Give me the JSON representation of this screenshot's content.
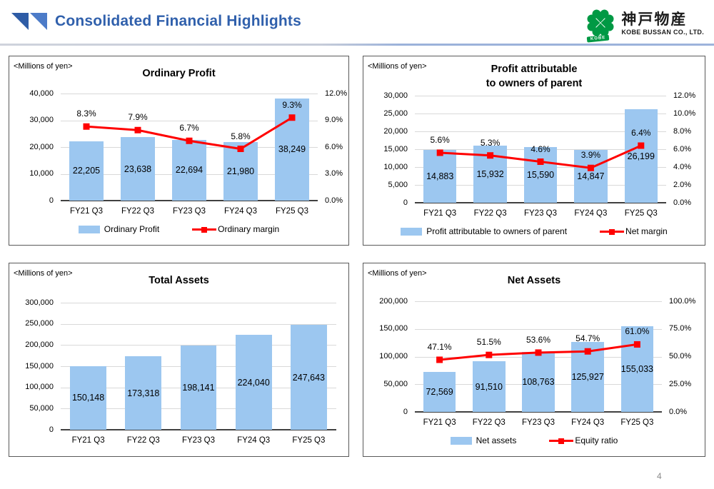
{
  "header": {
    "title": "Consolidated Financial Highlights",
    "logo": {
      "kanji": "神戸物産",
      "company": "KOBE BUSSAN CO., LTD.",
      "badge": "KOBE",
      "green": "#009944"
    }
  },
  "page_number": "4",
  "chart_data": [
    {
      "id": "ordinary-profit",
      "type": "bar+line",
      "unit_label": "<Millions of yen>",
      "title_lines": [
        "Ordinary Profit"
      ],
      "categories": [
        "FY21 Q3",
        "FY22 Q3",
        "FY23 Q3",
        "FY24 Q3",
        "FY25 Q3"
      ],
      "bar": {
        "name": "Ordinary Profit",
        "values": [
          22205,
          23638,
          22694,
          21980,
          38249
        ],
        "labels": [
          "22,205",
          "23,638",
          "22,694",
          "21,980",
          "38,249"
        ]
      },
      "line": {
        "name": "Ordinary margin",
        "values": [
          8.3,
          7.9,
          6.7,
          5.8,
          9.3
        ],
        "labels": [
          "8.3%",
          "7.9%",
          "6.7%",
          "5.8%",
          "9.3%"
        ]
      },
      "left_axis": {
        "min": 0,
        "max": 40000,
        "tick_labels": [
          "40,000",
          "30,000",
          "20,000",
          "10,000",
          "0"
        ]
      },
      "right_axis": {
        "min": 0,
        "max": 12,
        "tick_labels": [
          "12.0%",
          "9.0%",
          "6.0%",
          "3.0%",
          "0.0%"
        ]
      },
      "legend": [
        {
          "type": "bar",
          "label": "Ordinary Profit"
        },
        {
          "type": "line",
          "label": "Ordinary margin"
        }
      ],
      "colors": {
        "bar": "#9CC7F0",
        "line": "#FF0000"
      },
      "grid": true,
      "legend_position": "bottom"
    },
    {
      "id": "profit-attributable",
      "type": "bar+line",
      "unit_label": "<Millions of yen>",
      "title_lines": [
        "Profit attributable",
        "to owners of parent"
      ],
      "categories": [
        "FY21 Q3",
        "FY22 Q3",
        "FY23 Q3",
        "FY24 Q3",
        "FY25 Q3"
      ],
      "bar": {
        "name": "Profit attributable to owners of parent",
        "values": [
          14883,
          15932,
          15590,
          14847,
          26199
        ],
        "labels": [
          "14,883",
          "15,932",
          "15,590",
          "14,847",
          "26,199"
        ]
      },
      "line": {
        "name": "Net margin",
        "values": [
          5.6,
          5.3,
          4.6,
          3.9,
          6.4
        ],
        "labels": [
          "5.6%",
          "5.3%",
          "4.6%",
          "3.9%",
          "6.4%"
        ]
      },
      "left_axis": {
        "min": 0,
        "max": 30000,
        "tick_labels": [
          "30,000",
          "25,000",
          "20,000",
          "15,000",
          "10,000",
          "5,000",
          "0"
        ]
      },
      "right_axis": {
        "min": 0,
        "max": 12,
        "tick_labels": [
          "12.0%",
          "10.0%",
          "8.0%",
          "6.0%",
          "4.0%",
          "2.0%",
          "0.0%"
        ]
      },
      "legend": [
        {
          "type": "bar",
          "label": "Profit attributable to owners of parent"
        },
        {
          "type": "line",
          "label": "Net margin"
        }
      ],
      "colors": {
        "bar": "#9CC7F0",
        "line": "#FF0000"
      },
      "grid": true,
      "legend_position": "bottom"
    },
    {
      "id": "total-assets",
      "type": "bar",
      "unit_label": "<Millions of yen>",
      "title_lines": [
        "Total Assets"
      ],
      "categories": [
        "FY21 Q3",
        "FY22 Q3",
        "FY23 Q3",
        "FY24 Q3",
        "FY25 Q3"
      ],
      "bar": {
        "name": "Total Assets",
        "values": [
          150148,
          173318,
          198141,
          224040,
          247643
        ],
        "labels": [
          "150,148",
          "173,318",
          "198,141",
          "224,040",
          "247,643"
        ]
      },
      "line": null,
      "left_axis": {
        "min": 0,
        "max": 300000,
        "tick_labels": [
          "300,000",
          "250,000",
          "200,000",
          "150,000",
          "100,000",
          "50,000",
          "0"
        ]
      },
      "right_axis": null,
      "legend": [],
      "colors": {
        "bar": "#9CC7F0",
        "line": "#FF0000"
      },
      "grid": true,
      "legend_position": "none"
    },
    {
      "id": "net-assets",
      "type": "bar+line",
      "unit_label": "<Millions of yen>",
      "title_lines": [
        "Net Assets"
      ],
      "categories": [
        "FY21 Q3",
        "FY22 Q3",
        "FY23 Q3",
        "FY24 Q3",
        "FY25 Q3"
      ],
      "bar": {
        "name": "Net assets",
        "values": [
          72569,
          91510,
          108763,
          125927,
          155033
        ],
        "labels": [
          "72,569",
          "91,510",
          "108,763",
          "125,927",
          "155,033"
        ]
      },
      "line": {
        "name": "Equity ratio",
        "values": [
          47.1,
          51.5,
          53.6,
          54.7,
          61.0
        ],
        "labels": [
          "47.1%",
          "51.5%",
          "53.6%",
          "54.7%",
          "61.0%"
        ]
      },
      "left_axis": {
        "min": 0,
        "max": 200000,
        "tick_labels": [
          "200,000",
          "150,000",
          "100,000",
          "50,000",
          "0"
        ]
      },
      "right_axis": {
        "min": 0,
        "max": 100,
        "tick_labels": [
          "100.0%",
          "75.0%",
          "50.0%",
          "25.0%",
          "0.0%"
        ]
      },
      "legend": [
        {
          "type": "bar",
          "label": "Net assets"
        },
        {
          "type": "line",
          "label": "Equity ratio"
        }
      ],
      "colors": {
        "bar": "#9CC7F0",
        "line": "#FF0000"
      },
      "grid": true,
      "legend_position": "bottom"
    }
  ]
}
